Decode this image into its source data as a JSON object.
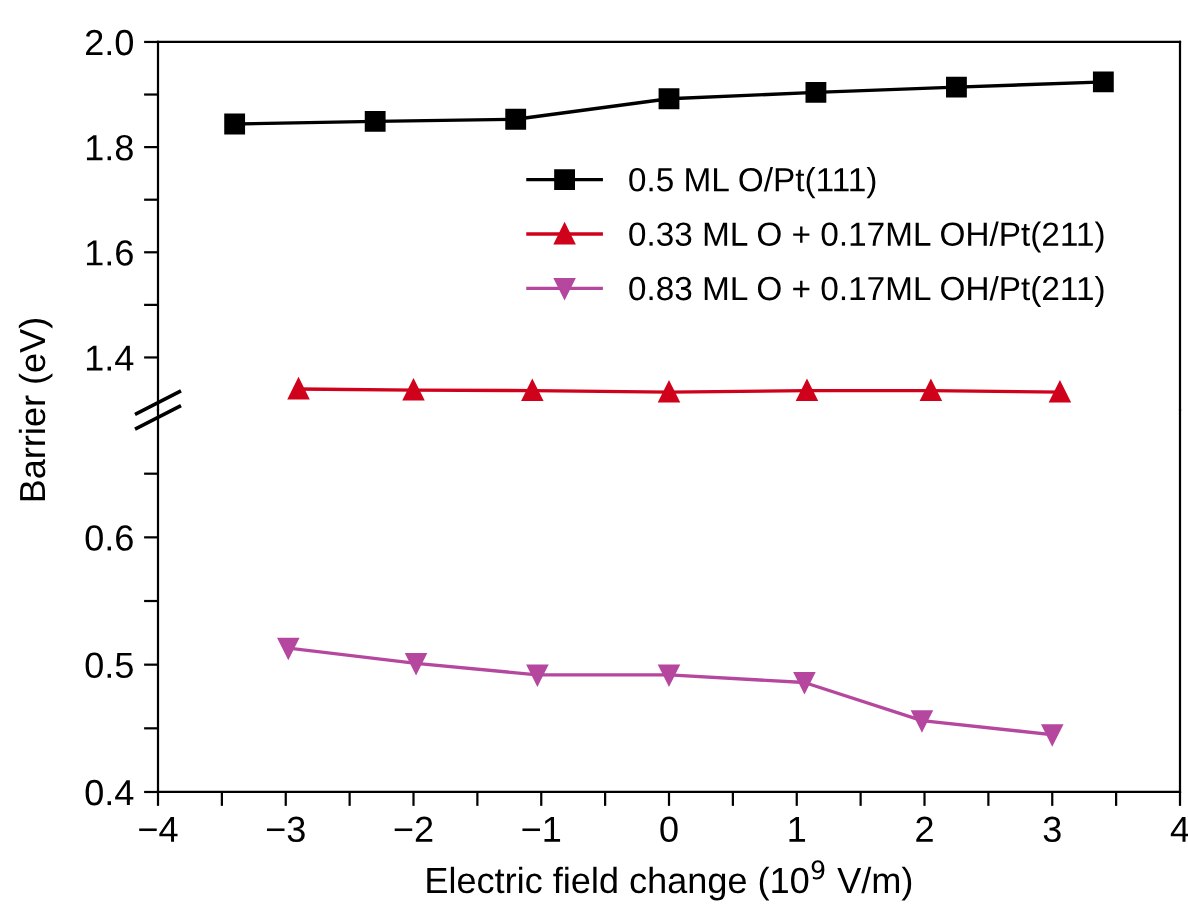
{
  "chart_data": [
    {
      "type": "line",
      "ylabel": "Barrier (eV)",
      "xlim": [
        -4,
        4
      ],
      "ylim": [
        1.3,
        2.0
      ],
      "tick_labels": "y",
      "legend": "right",
      "line_style": "solid",
      "grid": false,
      "yticks": [
        {
          "value": 1.4,
          "label": "1.4"
        },
        {
          "value": 1.5,
          "label": null
        },
        {
          "value": 1.6,
          "label": "1.6"
        },
        {
          "value": 1.7,
          "label": null
        },
        {
          "value": 1.8,
          "label": "1.8"
        },
        {
          "value": 1.9,
          "label": null
        },
        {
          "value": 2.0,
          "label": "2.0"
        }
      ],
      "series": [
        {
          "name": "0.5 ML O/Pt(111)",
          "color": "#000000",
          "marker": "square",
          "x": [
            -3.4,
            -2.3,
            -1.2,
            0,
            1.15,
            2.25,
            3.4
          ],
          "values": [
            1.844,
            1.849,
            1.853,
            1.892,
            1.904,
            1.914,
            1.924
          ]
        },
        {
          "name": "0.33 ML O + 0.17ML OH/Pt(211)",
          "color": "#d0021b",
          "marker": "triangle",
          "x": [
            -2.9,
            -2.0,
            -1.07,
            0,
            1.08,
            2.05,
            3.06
          ],
          "values": [
            1.34,
            1.338,
            1.337,
            1.334,
            1.337,
            1.337,
            1.334
          ]
        },
        {
          "name": "0.83 ML O + 0.17ML OH/Pt(211)",
          "color": "#b5479f",
          "marker": "triangle_down"
        }
      ]
    },
    {
      "type": "line",
      "xlabel": "Electric field change (10$^{9}$ V/m)",
      "xlim": [
        -4,
        4
      ],
      "ylim": [
        0.4,
        0.7
      ],
      "line_style": "solid",
      "grid": false,
      "xticks": [
        {
          "value": -4,
          "label": "−4"
        },
        {
          "value": -3.5,
          "label": null
        },
        {
          "value": -3,
          "label": "−3"
        },
        {
          "value": -2.5,
          "label": null
        },
        {
          "value": -2,
          "label": "−2"
        },
        {
          "value": -1.5,
          "label": null
        },
        {
          "value": -1,
          "label": "−1"
        },
        {
          "value": -0.5,
          "label": null
        },
        0,
        {
          "value": 0.5,
          "label": null
        },
        1,
        {
          "value": 1.5,
          "label": null
        },
        2,
        {
          "value": 2.5,
          "label": null
        },
        3,
        {
          "value": 3.5,
          "label": null
        },
        4
      ],
      "yticks": [
        0.4,
        {
          "value": 0.45,
          "label": null
        },
        0.5,
        {
          "value": 0.55,
          "label": null
        },
        0.6,
        {
          "value": 0.65,
          "label": null
        }
      ],
      "series": [
        {
          "color": "#b5479f",
          "marker": "triangle_down",
          "x": [
            -2.98,
            -1.98,
            -1.03,
            0,
            1.06,
            1.98,
            3.0
          ],
          "values": [
            0.513,
            0.501,
            0.492,
            0.492,
            0.486,
            0.456,
            0.445
          ]
        }
      ]
    }
  ]
}
